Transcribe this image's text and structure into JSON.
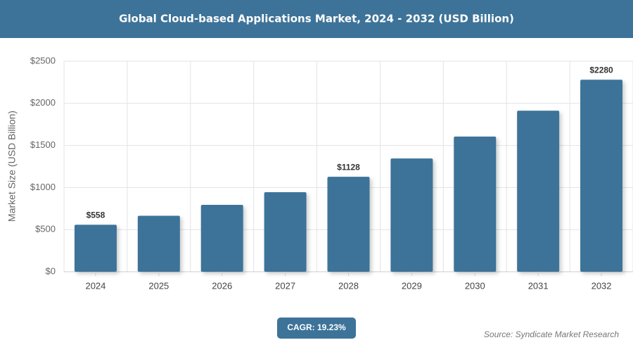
{
  "chart_data": {
    "type": "bar",
    "title": "Global Cloud-based Applications Market, 2024 - 2032 (USD Billion)",
    "y_label": "Market Size (USD Billion)",
    "categories": [
      "2024",
      "2025",
      "2026",
      "2027",
      "2028",
      "2029",
      "2030",
      "2031",
      "2032"
    ],
    "values": [
      558,
      665,
      794,
      945,
      1128,
      1345,
      1605,
      1913,
      2280
    ],
    "value_labels": [
      "$558",
      null,
      null,
      null,
      "$1128",
      null,
      null,
      null,
      "$2280"
    ],
    "color": "#3d7399",
    "ylim": [
      0,
      2500
    ],
    "yticks": [
      {
        "value": 0,
        "label": "$0"
      },
      {
        "value": 500,
        "label": "$500"
      },
      {
        "value": 1000,
        "label": "$1000"
      },
      {
        "value": 1500,
        "label": "$1500"
      },
      {
        "value": 2000,
        "label": "$2000"
      },
      {
        "value": 2500,
        "label": "$2500"
      }
    ],
    "grid": true,
    "badge": "CAGR: 19.23%",
    "source": "Source: Syndicate Market Research"
  }
}
